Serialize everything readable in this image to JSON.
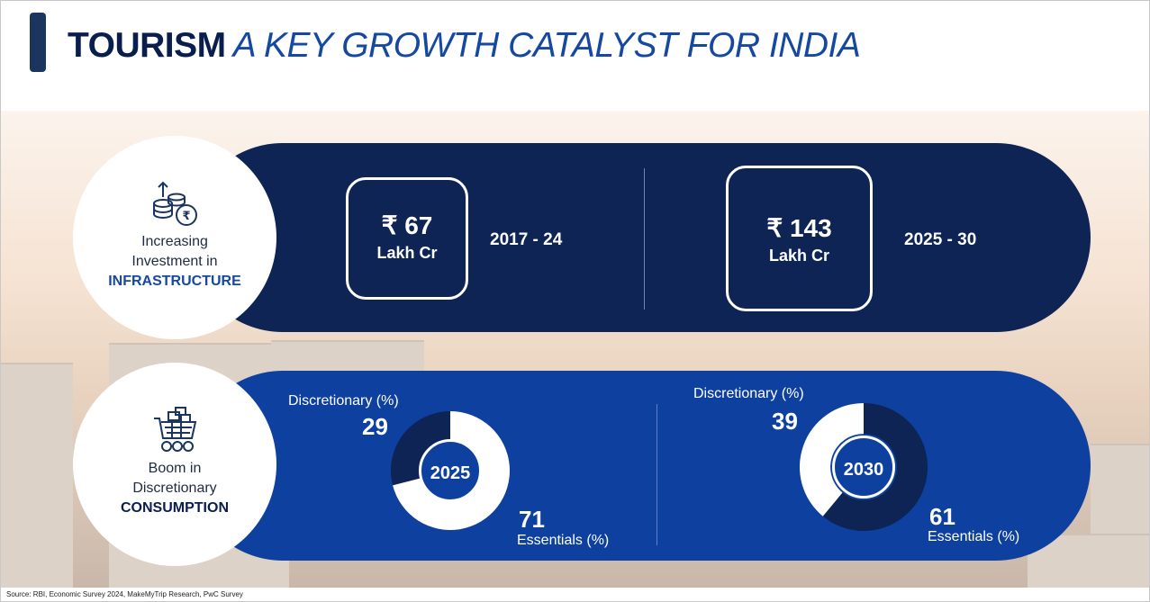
{
  "title": {
    "bold": "TOURISM",
    "italic": "A KEY GROWTH CATALYST FOR INDIA"
  },
  "infrastructure": {
    "icon": "coins-rupee-icon",
    "label_line1": "Increasing",
    "label_line2": "Investment in",
    "label_strong": "INFRASTRUCTURE",
    "label_strong_color": "#1548a0",
    "items": [
      {
        "value": "₹ 67",
        "unit": "Lakh Cr",
        "period": "2017 - 24"
      },
      {
        "value": "₹ 143",
        "unit": "Lakh Cr",
        "period": "2025 - 30"
      }
    ]
  },
  "consumption": {
    "icon": "shopping-cart-icon",
    "label_line1": "Boom in",
    "label_line2": "Discretionary",
    "label_strong": "CONSUMPTION",
    "label_strong_color": "#0a1e4d",
    "charts": [
      {
        "year": "2025",
        "discretionary_label": "Discretionary (%)",
        "discretionary": 29,
        "essentials_label": "Essentials (%)",
        "essentials": 71
      },
      {
        "year": "2030",
        "discretionary_label": "Discretionary (%)",
        "discretionary": 39,
        "essentials_label": "Essentials (%)",
        "essentials": 61
      }
    ]
  },
  "colors": {
    "navy": "#0d2454",
    "blue": "#0e40a0",
    "dark_segment": "#0d2454",
    "light_segment": "#ffffff"
  },
  "source": "Source: RBI, Economic Survey 2024, MakeMyTrip Research, PwC Survey"
}
